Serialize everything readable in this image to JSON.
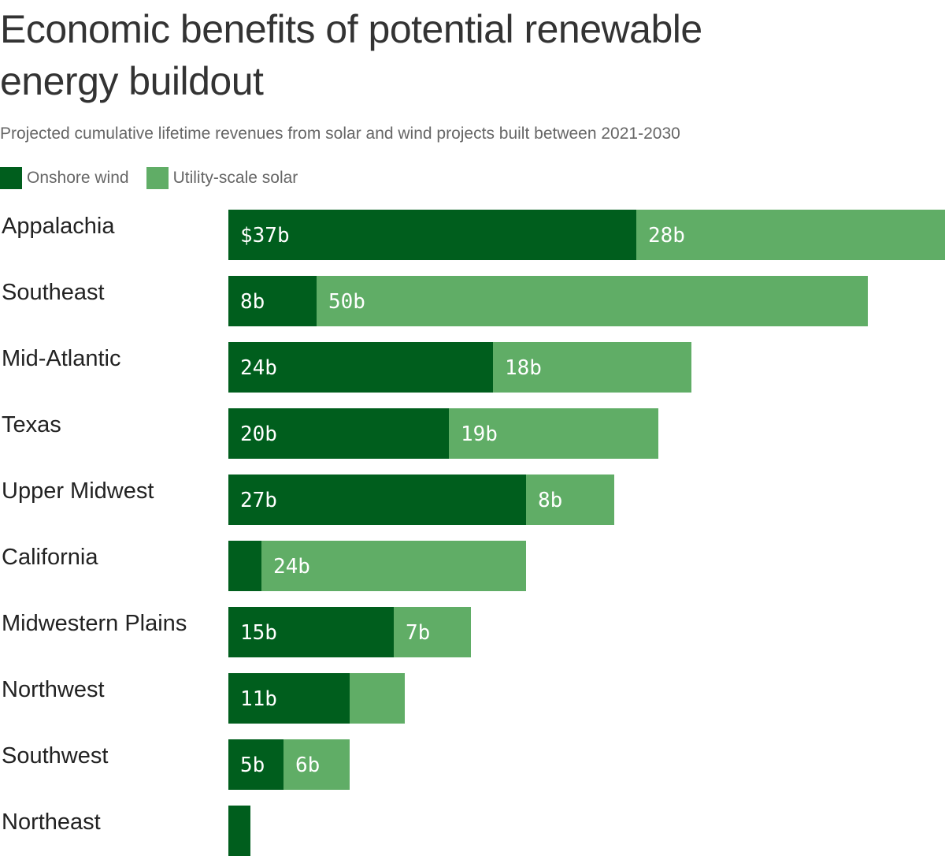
{
  "chart_data": {
    "type": "bar",
    "orientation": "horizontal",
    "stacked": true,
    "title": "Economic benefits of potential renewable energy buildout",
    "subtitle": "Projected cumulative lifetime revenues from solar and wind projects built between 2021-2030",
    "xlabel": "",
    "ylabel": "",
    "unit": "billion USD",
    "xlim": [
      0,
      65
    ],
    "grid": false,
    "legend_position": "top-left",
    "categories": [
      "Appalachia",
      "Southeast",
      "Mid-Atlantic",
      "Texas",
      "Upper Midwest",
      "California",
      "Midwestern Plains",
      "Northwest",
      "Southwest",
      "Northeast"
    ],
    "series": [
      {
        "name": "Onshore wind",
        "color": "#005e1d",
        "values": [
          37,
          8,
          24,
          20,
          27,
          3,
          15,
          11,
          5,
          2
        ],
        "labels": [
          "$37b",
          "8b",
          "24b",
          "20b",
          "27b",
          "",
          "15b",
          "11b",
          "5b",
          ""
        ]
      },
      {
        "name": "Utility-scale solar",
        "color": "#60ad66",
        "values": [
          28,
          50,
          18,
          19,
          8,
          24,
          7,
          5,
          6,
          0
        ],
        "labels": [
          "28b",
          "50b",
          "18b",
          "19b",
          "8b",
          "24b",
          "7b",
          "",
          "6b",
          ""
        ]
      }
    ]
  }
}
